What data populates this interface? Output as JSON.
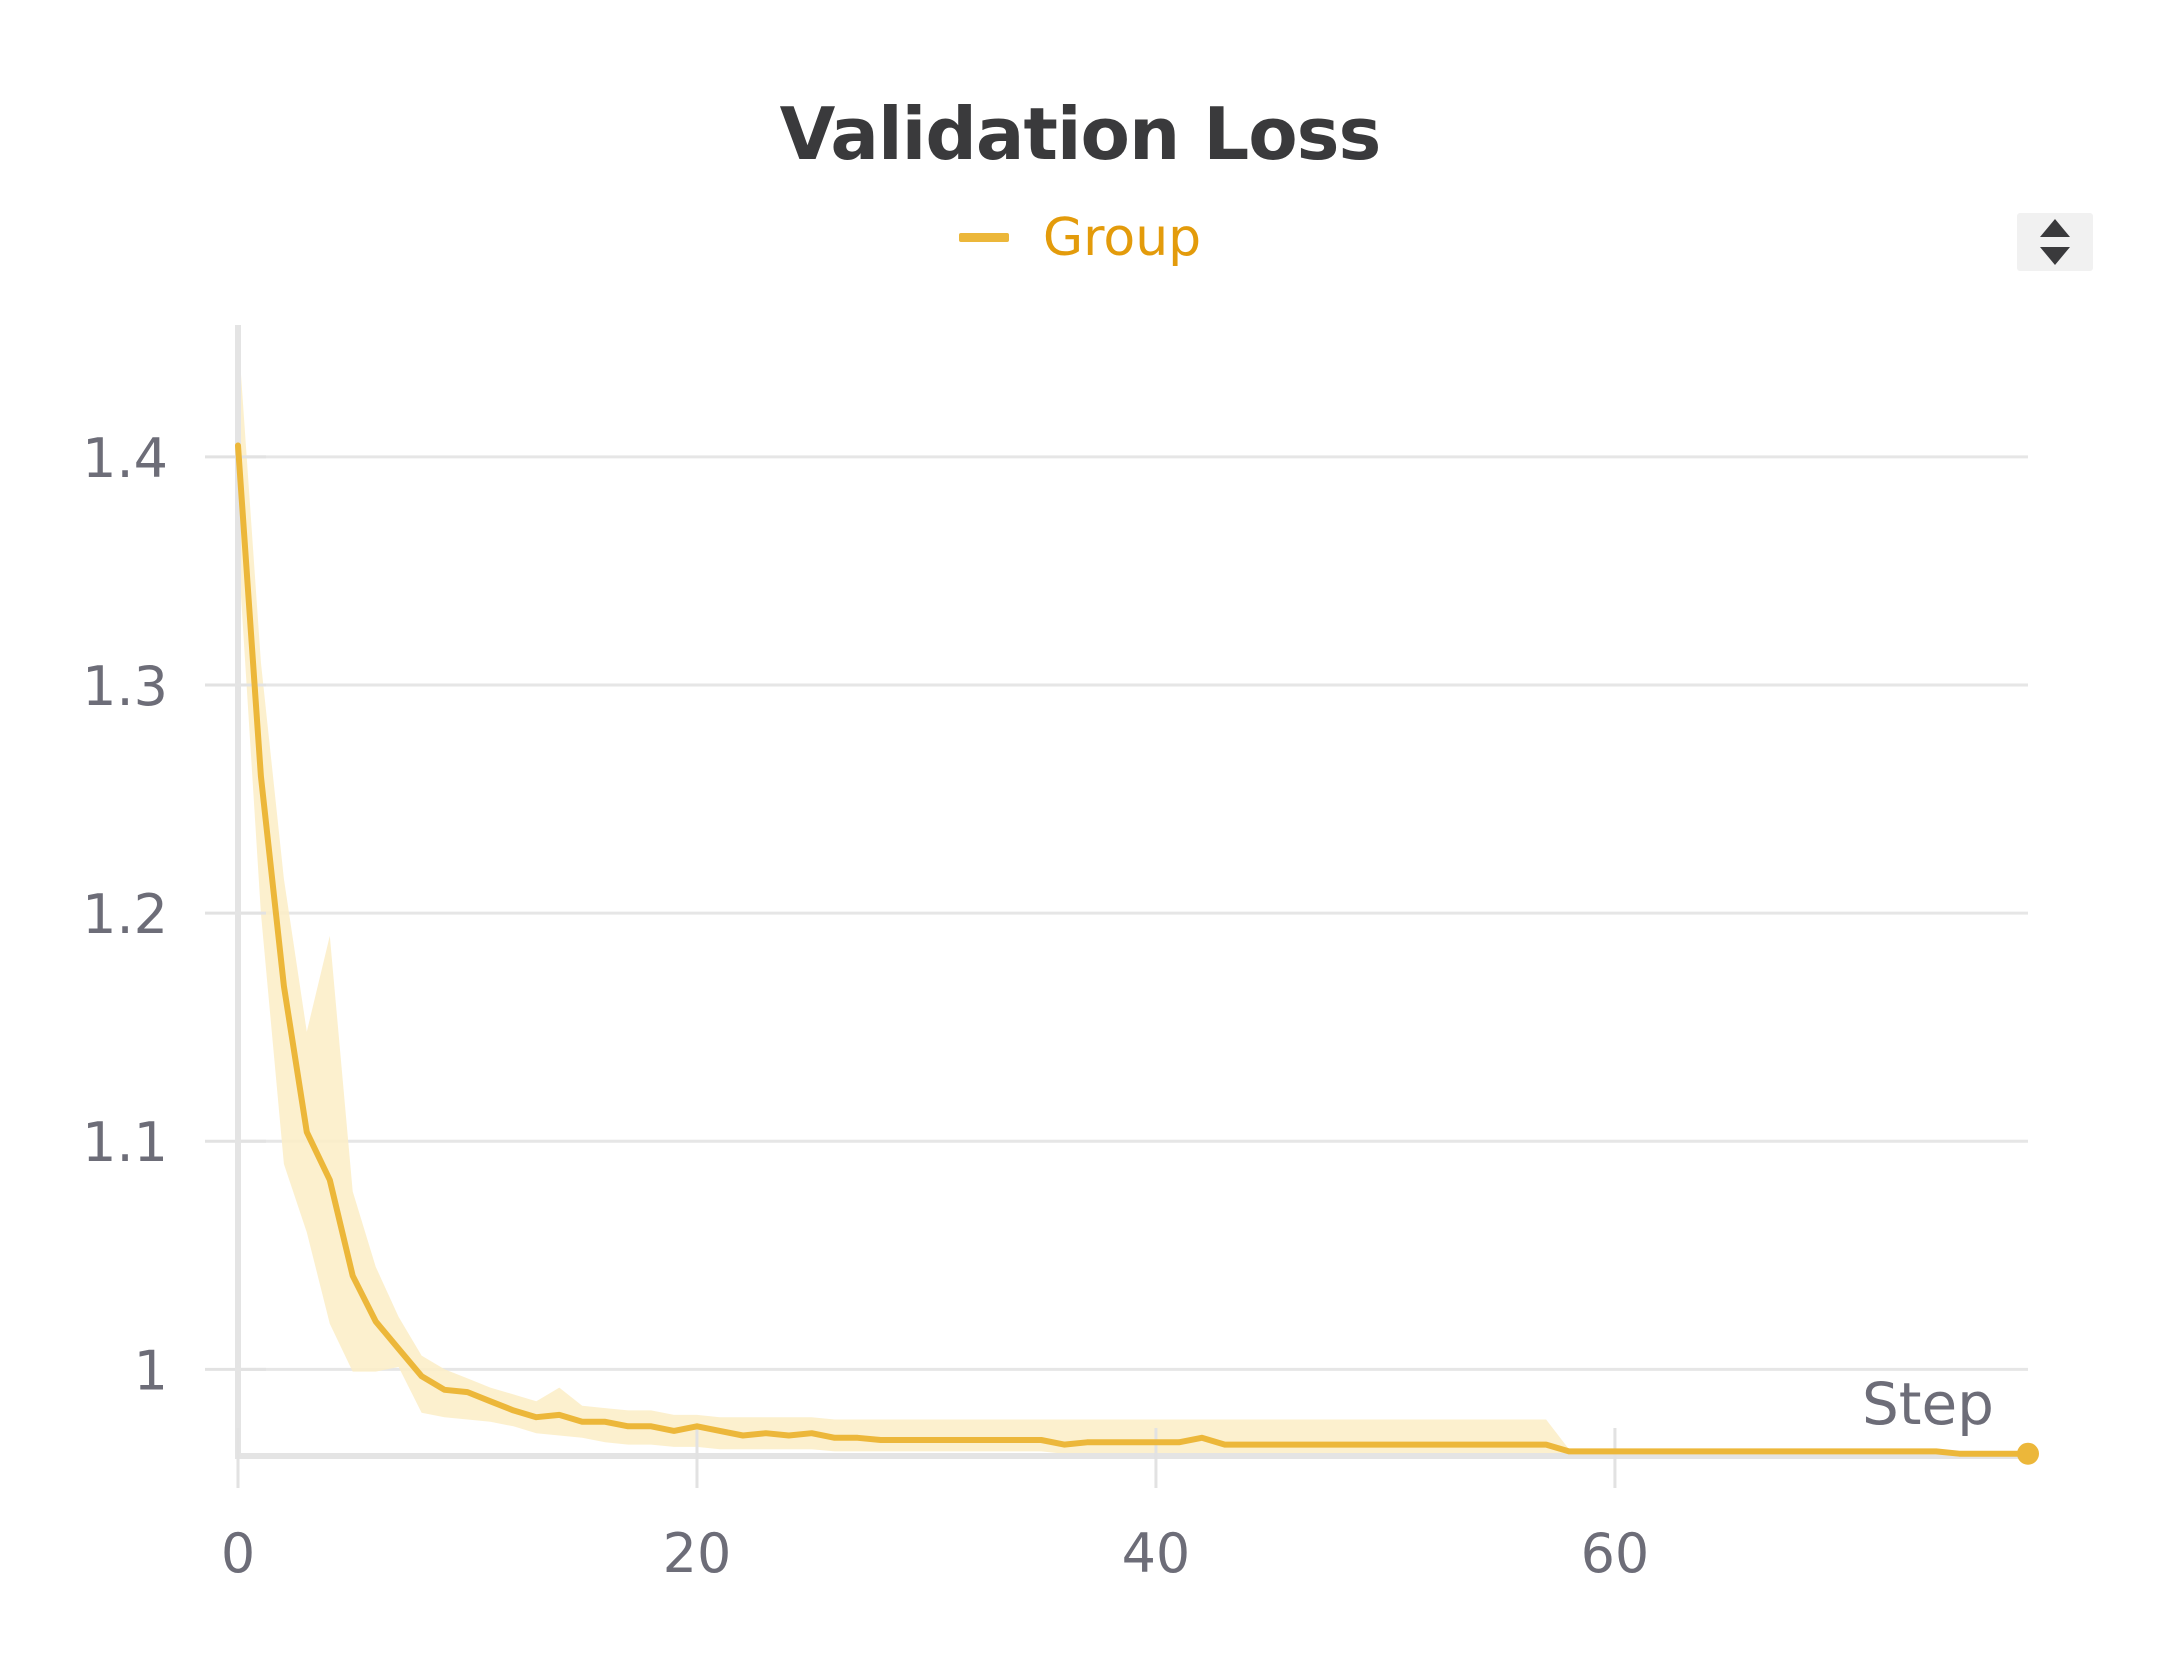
{
  "chart_data": {
    "type": "line",
    "title": "Validation Loss",
    "xlabel": "Step",
    "ylabel": "",
    "xlim": [
      0,
      78
    ],
    "ylim": [
      0.962,
      1.46
    ],
    "x_ticks": [
      0,
      20,
      40,
      60
    ],
    "y_ticks": [
      1.4,
      1.3,
      1.2,
      1.1,
      1
    ],
    "y_tick_labels": [
      "1.4",
      "1.3",
      "1.2",
      "1.1",
      "1"
    ],
    "x_tick_labels": [
      "0",
      "20",
      "40",
      "60"
    ],
    "grid": true,
    "legend_position": "top-center",
    "series": [
      {
        "name": "Group",
        "color": "#ecb73a",
        "band_color": "#fcedc6",
        "x": [
          0,
          1,
          2,
          3,
          4,
          5,
          6,
          7,
          8,
          9,
          10,
          11,
          12,
          13,
          14,
          15,
          16,
          17,
          18,
          19,
          20,
          21,
          22,
          23,
          24,
          25,
          26,
          27,
          28,
          29,
          30,
          31,
          32,
          33,
          34,
          35,
          36,
          37,
          38,
          39,
          40,
          41,
          42,
          43,
          44,
          45,
          46,
          47,
          48,
          49,
          50,
          51,
          52,
          53,
          54,
          55,
          56,
          57,
          58,
          59,
          60,
          61,
          62,
          63,
          64,
          65,
          66,
          67,
          68,
          69,
          70,
          71,
          72,
          73,
          74,
          75,
          76,
          77,
          78
        ],
        "values": [
          1.405,
          1.26,
          1.168,
          1.104,
          1.083,
          1.041,
          1.021,
          1.009,
          0.997,
          0.991,
          0.99,
          0.986,
          0.982,
          0.979,
          0.98,
          0.977,
          0.977,
          0.975,
          0.975,
          0.973,
          0.975,
          0.973,
          0.971,
          0.972,
          0.971,
          0.972,
          0.97,
          0.97,
          0.969,
          0.969,
          0.969,
          0.969,
          0.969,
          0.969,
          0.969,
          0.969,
          0.967,
          0.968,
          0.968,
          0.968,
          0.968,
          0.968,
          0.97,
          0.967,
          0.967,
          0.967,
          0.967,
          0.967,
          0.967,
          0.967,
          0.967,
          0.967,
          0.967,
          0.967,
          0.967,
          0.967,
          0.967,
          0.967,
          0.964,
          0.964,
          0.964,
          0.964,
          0.964,
          0.964,
          0.964,
          0.964,
          0.964,
          0.964,
          0.964,
          0.964,
          0.964,
          0.964,
          0.964,
          0.964,
          0.964,
          0.963,
          0.963,
          0.963,
          0.963
        ],
        "upper": [
          1.455,
          1.31,
          1.215,
          1.148,
          1.19,
          1.078,
          1.045,
          1.023,
          1.006,
          1.0,
          0.996,
          0.992,
          0.989,
          0.986,
          0.992,
          0.984,
          0.983,
          0.982,
          0.982,
          0.98,
          0.98,
          0.979,
          0.979,
          0.979,
          0.979,
          0.979,
          0.978,
          0.978,
          0.978,
          0.978,
          0.978,
          0.978,
          0.978,
          0.978,
          0.978,
          0.978,
          0.978,
          0.978,
          0.978,
          0.978,
          0.978,
          0.978,
          0.978,
          0.978,
          0.978,
          0.978,
          0.978,
          0.978,
          0.978,
          0.978,
          0.978,
          0.978,
          0.978,
          0.978,
          0.978,
          0.978,
          0.978,
          0.978,
          0.965,
          0.965,
          0.965,
          0.965,
          0.965,
          0.965,
          0.965,
          0.965,
          0.965,
          0.965,
          0.965,
          0.965,
          0.965,
          0.965,
          0.965,
          0.965,
          0.965,
          0.964,
          0.964,
          0.964,
          0.964
        ],
        "lower": [
          1.36,
          1.2,
          1.09,
          1.06,
          1.02,
          0.999,
          0.999,
          1.001,
          0.981,
          0.979,
          0.978,
          0.977,
          0.975,
          0.972,
          0.971,
          0.97,
          0.968,
          0.967,
          0.967,
          0.966,
          0.966,
          0.965,
          0.965,
          0.965,
          0.965,
          0.965,
          0.964,
          0.964,
          0.964,
          0.964,
          0.964,
          0.964,
          0.964,
          0.964,
          0.964,
          0.964,
          0.963,
          0.963,
          0.963,
          0.963,
          0.963,
          0.963,
          0.963,
          0.963,
          0.963,
          0.963,
          0.963,
          0.963,
          0.963,
          0.963,
          0.963,
          0.963,
          0.963,
          0.963,
          0.963,
          0.963,
          0.963,
          0.963,
          0.963,
          0.963,
          0.963,
          0.963,
          0.963,
          0.963,
          0.963,
          0.963,
          0.963,
          0.963,
          0.963,
          0.963,
          0.963,
          0.963,
          0.963,
          0.963,
          0.963,
          0.962,
          0.962,
          0.962,
          0.962
        ]
      }
    ]
  },
  "legend": {
    "label": "Group",
    "color": "#ecb73a"
  },
  "sort_button": {
    "icon": "sort-icon"
  }
}
